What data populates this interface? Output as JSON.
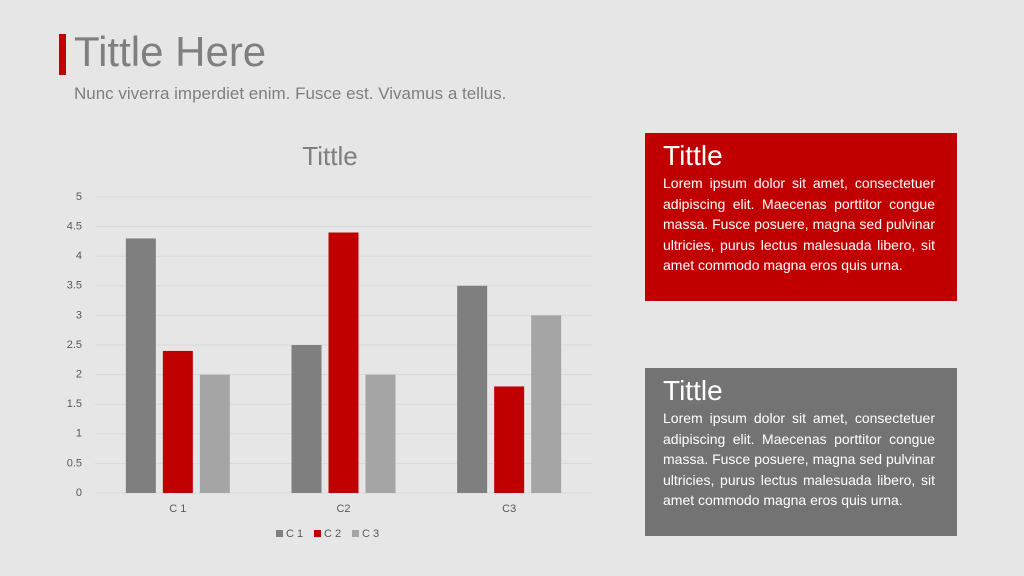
{
  "header": {
    "title": "Tittle Here",
    "subtitle": "Nunc viverra imperdiet enim. Fusce est. Vivamus a tellus."
  },
  "chart_data": {
    "type": "bar",
    "title": "Tittle",
    "categories": [
      "C 1",
      "C2",
      "C3"
    ],
    "series": [
      {
        "name": "C 1",
        "color": "#7f7f7f",
        "values": [
          4.3,
          2.5,
          3.5
        ]
      },
      {
        "name": "C 2",
        "color": "#c00000",
        "values": [
          2.4,
          4.4,
          1.8
        ]
      },
      {
        "name": "C 3",
        "color": "#a5a5a5",
        "values": [
          2,
          2,
          3
        ]
      }
    ],
    "ylim": [
      0,
      5
    ],
    "yticks": [
      0,
      0.5,
      1,
      1.5,
      2,
      2.5,
      3,
      3.5,
      4,
      4.5,
      5
    ],
    "grid": true,
    "legend": "bottom"
  },
  "boxes": [
    {
      "title": "Tittle",
      "text": "Lorem ipsum dolor sit amet, consectetuer adipiscing elit. Maecenas porttitor congue massa. Fusce posuere, magna sed pulvinar ultricies, purus lectus malesuada libero, sit amet commodo magna eros quis urna."
    },
    {
      "title": "Tittle",
      "text": "Lorem ipsum dolor sit amet, consectetuer adipiscing elit. Maecenas porttitor congue massa. Fusce posuere, magna sed pulvinar ultricies, purus lectus malesuada libero, sit amet commodo magna eros quis urna."
    }
  ]
}
